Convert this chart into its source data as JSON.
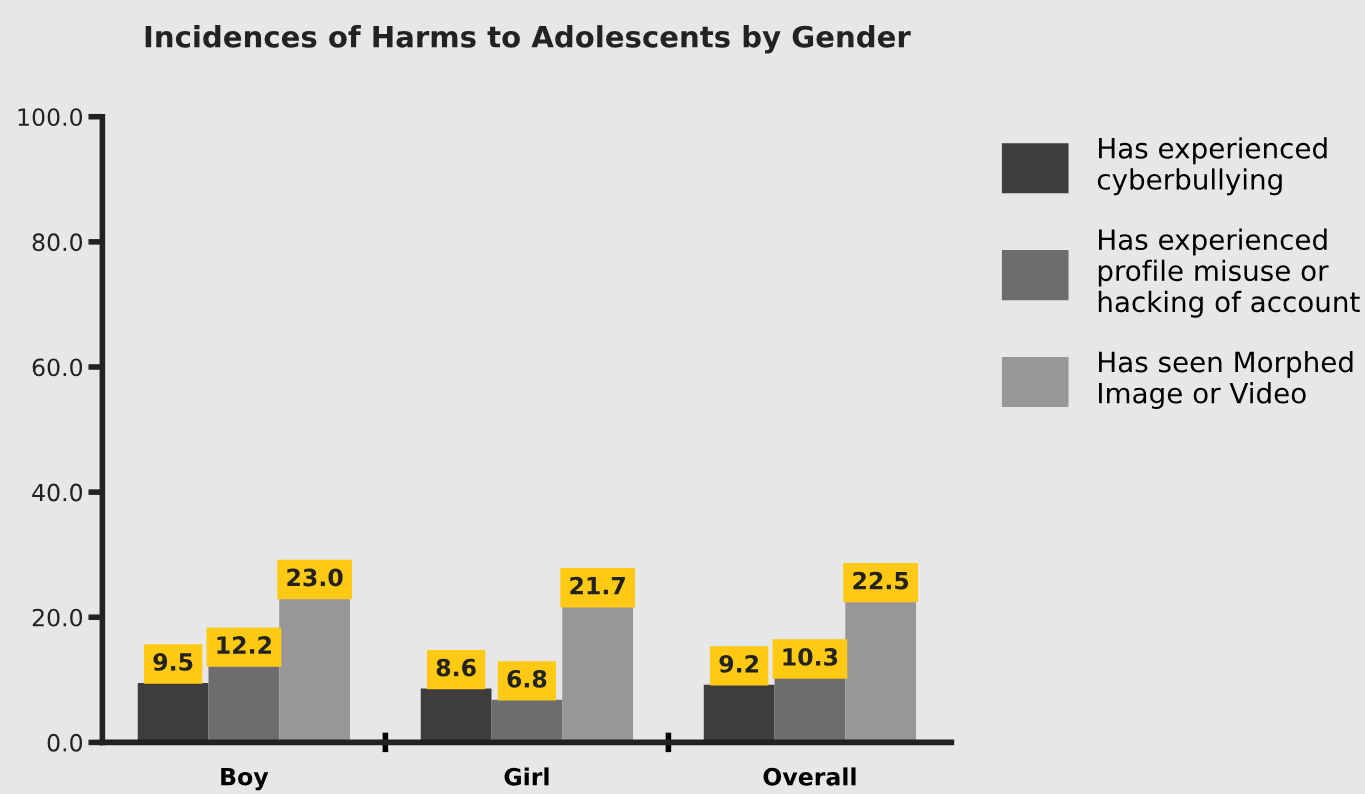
{
  "chart_data": {
    "type": "bar",
    "title": "Incidences of Harms to Adolescents by Gender",
    "categories": [
      "Boy",
      "Girl",
      "Overall"
    ],
    "series": [
      {
        "name": "Has experienced cyberbullying",
        "color": "#3d3d3d",
        "values": [
          9.5,
          8.6,
          9.2
        ],
        "value_labels": [
          "9.5",
          "8.6",
          "9.2"
        ]
      },
      {
        "name": "Has experienced profile misuse or hacking of account",
        "color": "#6d6d70",
        "values": [
          12.2,
          6.8,
          10.3
        ],
        "value_labels": [
          "12.2",
          "6.8",
          "10.3"
        ]
      },
      {
        "name": "Has seen Morphed Image or Video",
        "color": "#97979a",
        "values": [
          23.0,
          21.7,
          22.5
        ],
        "value_labels": [
          "23.0",
          "21.7",
          "22.5"
        ]
      }
    ],
    "ylim": [
      0,
      100
    ],
    "yticks": [
      {
        "value": 0,
        "label": "0.0"
      },
      {
        "value": 20,
        "label": "20.0"
      },
      {
        "value": 40,
        "label": "40.0"
      },
      {
        "value": 60,
        "label": "60.0"
      },
      {
        "value": 80,
        "label": "80.0"
      },
      {
        "value": 100,
        "label": "100.0"
      }
    ],
    "grid": false,
    "legend": "right"
  }
}
